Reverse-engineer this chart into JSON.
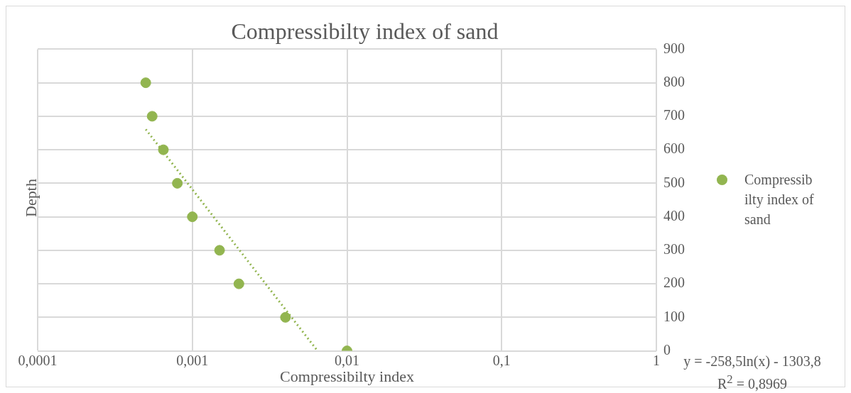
{
  "chart_data": {
    "type": "scatter",
    "title": "Compressibilty index of sand",
    "xlabel": "Compressibilty index",
    "ylabel": "Depth",
    "log": "x",
    "xlim": [
      0.0001,
      1
    ],
    "xticks": [
      {
        "value": 0.0001,
        "label": "0,0001"
      },
      {
        "value": 0.001,
        "label": "0,001"
      },
      {
        "value": 0.01,
        "label": "0,01"
      },
      {
        "value": 0.1,
        "label": "0,1"
      },
      1
    ],
    "ylim": [
      0,
      900
    ],
    "yticks": [
      0,
      100,
      200,
      300,
      400,
      500,
      600,
      700,
      800,
      900
    ],
    "grid": true,
    "legend": "right",
    "marker": "circle",
    "series": [
      {
        "name": "Compressibilty index of sand",
        "color": "#92b550",
        "x": [
          0.0005,
          0.00055,
          0.00065,
          0.0008,
          0.001,
          0.0015,
          0.002,
          0.004,
          0.01
        ],
        "values": [
          800,
          700,
          600,
          500,
          400,
          300,
          200,
          100,
          0
        ]
      },
      {
        "type": "line",
        "color": "#92b550",
        "line_style": "dotted",
        "marker": "none",
        "x": [
          0.0005,
          0.00645
        ],
        "values": [
          661,
          0
        ]
      }
    ],
    "annotations": [
      "y = -258,5ln(x) - 1303,8",
      "R$^{2}$ = 0,8969"
    ]
  }
}
